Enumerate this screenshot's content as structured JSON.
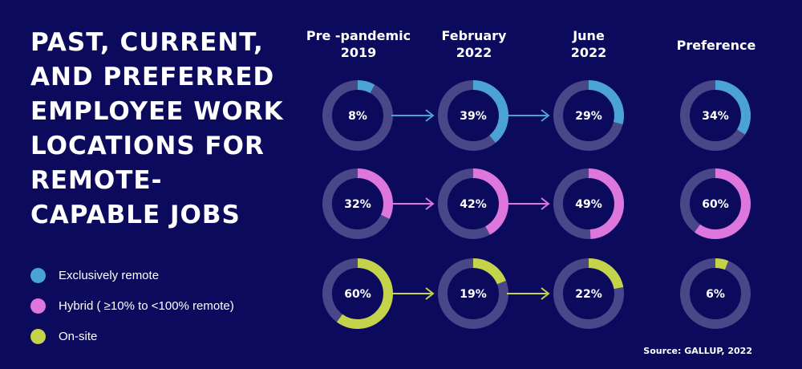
{
  "title": "PAST, CURRENT, AND PREFERRED EMPLOYEE WORK LOCATIONS FOR REMOTE-CAPABLE JOBS",
  "source": "Source: GALLUP, 2022",
  "legend": [
    {
      "label": "Exclusively remote",
      "color": "#4aa3d4"
    },
    {
      "label": "Hybrid ( ≥10% to <100% remote)",
      "color": "#dd77dd"
    },
    {
      "label": "On-site",
      "color": "#c4d34a"
    }
  ],
  "columns": [
    {
      "line1": "Pre -pandemic",
      "line2": "2019"
    },
    {
      "line1": "February",
      "line2": "2022"
    },
    {
      "line1": "June",
      "line2": "2022"
    },
    {
      "line1": "Preference",
      "line2": ""
    }
  ],
  "colors": {
    "background": "#0b0a5c",
    "track": "#4a4788",
    "text": "#ffffff"
  },
  "chart_data": {
    "type": "donut",
    "categories": [
      "Pre -pandemic 2019",
      "February 2022",
      "June 2022",
      "Preference"
    ],
    "series": [
      {
        "name": "Exclusively remote",
        "color": "#4aa3d4",
        "values": [
          8,
          39,
          29,
          34
        ]
      },
      {
        "name": "Hybrid ( ≥10% to <100% remote)",
        "color": "#dd77dd",
        "values": [
          32,
          42,
          49,
          60
        ]
      },
      {
        "name": "On-site",
        "color": "#c4d34a",
        "values": [
          60,
          19,
          22,
          6
        ]
      }
    ],
    "unit": "%"
  }
}
